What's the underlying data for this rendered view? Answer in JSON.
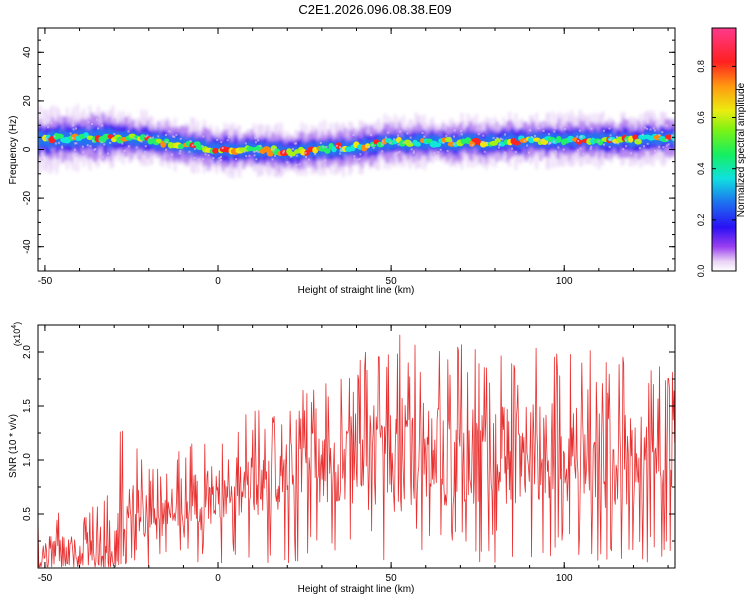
{
  "title": "C2E1.2026.096.08.38.E09",
  "chart_data": [
    {
      "type": "heatmap",
      "name": "spectrogram",
      "xlabel": "Height of straight line (km)",
      "ylabel": "Frequency (Hz)",
      "xlim": [
        -52,
        132
      ],
      "ylim": [
        -50,
        50
      ],
      "xticks": [
        "-50",
        "0",
        "50",
        "100"
      ],
      "yticks": [
        "40",
        "20",
        "0",
        "-20",
        "-40"
      ],
      "ridge": {
        "x": [
          -50,
          -40,
          -30,
          -20,
          -10,
          0,
          10,
          20,
          30,
          40,
          50,
          60,
          70,
          80,
          90,
          100,
          110,
          120,
          130
        ],
        "frequency_hz": [
          4,
          5,
          5,
          4,
          2,
          0,
          0,
          -1,
          0,
          1,
          3,
          3,
          3,
          3,
          4,
          4,
          4,
          4,
          5
        ]
      },
      "colorbar": {
        "label": "Normalized spectral amplitude",
        "range": [
          0,
          0.95
        ],
        "ticks": [
          "0.0",
          "0.2",
          "0.4",
          "0.6",
          "0.8"
        ]
      }
    },
    {
      "type": "line",
      "name": "snr",
      "xlabel": "Height of straight line (km)",
      "ylabel": "SNR (10 * v/v)",
      "scale_label": "(x10",
      "scale_exp": "4",
      "xlim": [
        -52,
        132
      ],
      "ylim": [
        0,
        2.25
      ],
      "xticks": [
        "-50",
        "0",
        "50",
        "100"
      ],
      "yticks": [
        "2.0",
        "1.5",
        "1.0",
        "0.5"
      ],
      "color": "#e83030",
      "envelope": {
        "x": [
          -52,
          -40,
          -30,
          -28,
          -20,
          -10,
          0,
          10,
          20,
          30,
          40,
          50,
          60,
          70,
          80,
          90,
          100,
          110,
          120,
          132
        ],
        "mean": [
          0.15,
          0.15,
          0.2,
          0.38,
          0.45,
          0.55,
          0.7,
          0.8,
          0.85,
          0.95,
          1.0,
          1.05,
          1.05,
          1.05,
          1.05,
          1.05,
          1.05,
          1.0,
          1.0,
          1.0
        ],
        "max": [
          0.6,
          0.5,
          0.8,
          1.35,
          1.0,
          1.2,
          1.3,
          1.5,
          1.6,
          1.7,
          2.0,
          2.25,
          2.2,
          2.1,
          2.1,
          2.1,
          2.1,
          2.0,
          2.0,
          1.9
        ]
      }
    }
  ]
}
